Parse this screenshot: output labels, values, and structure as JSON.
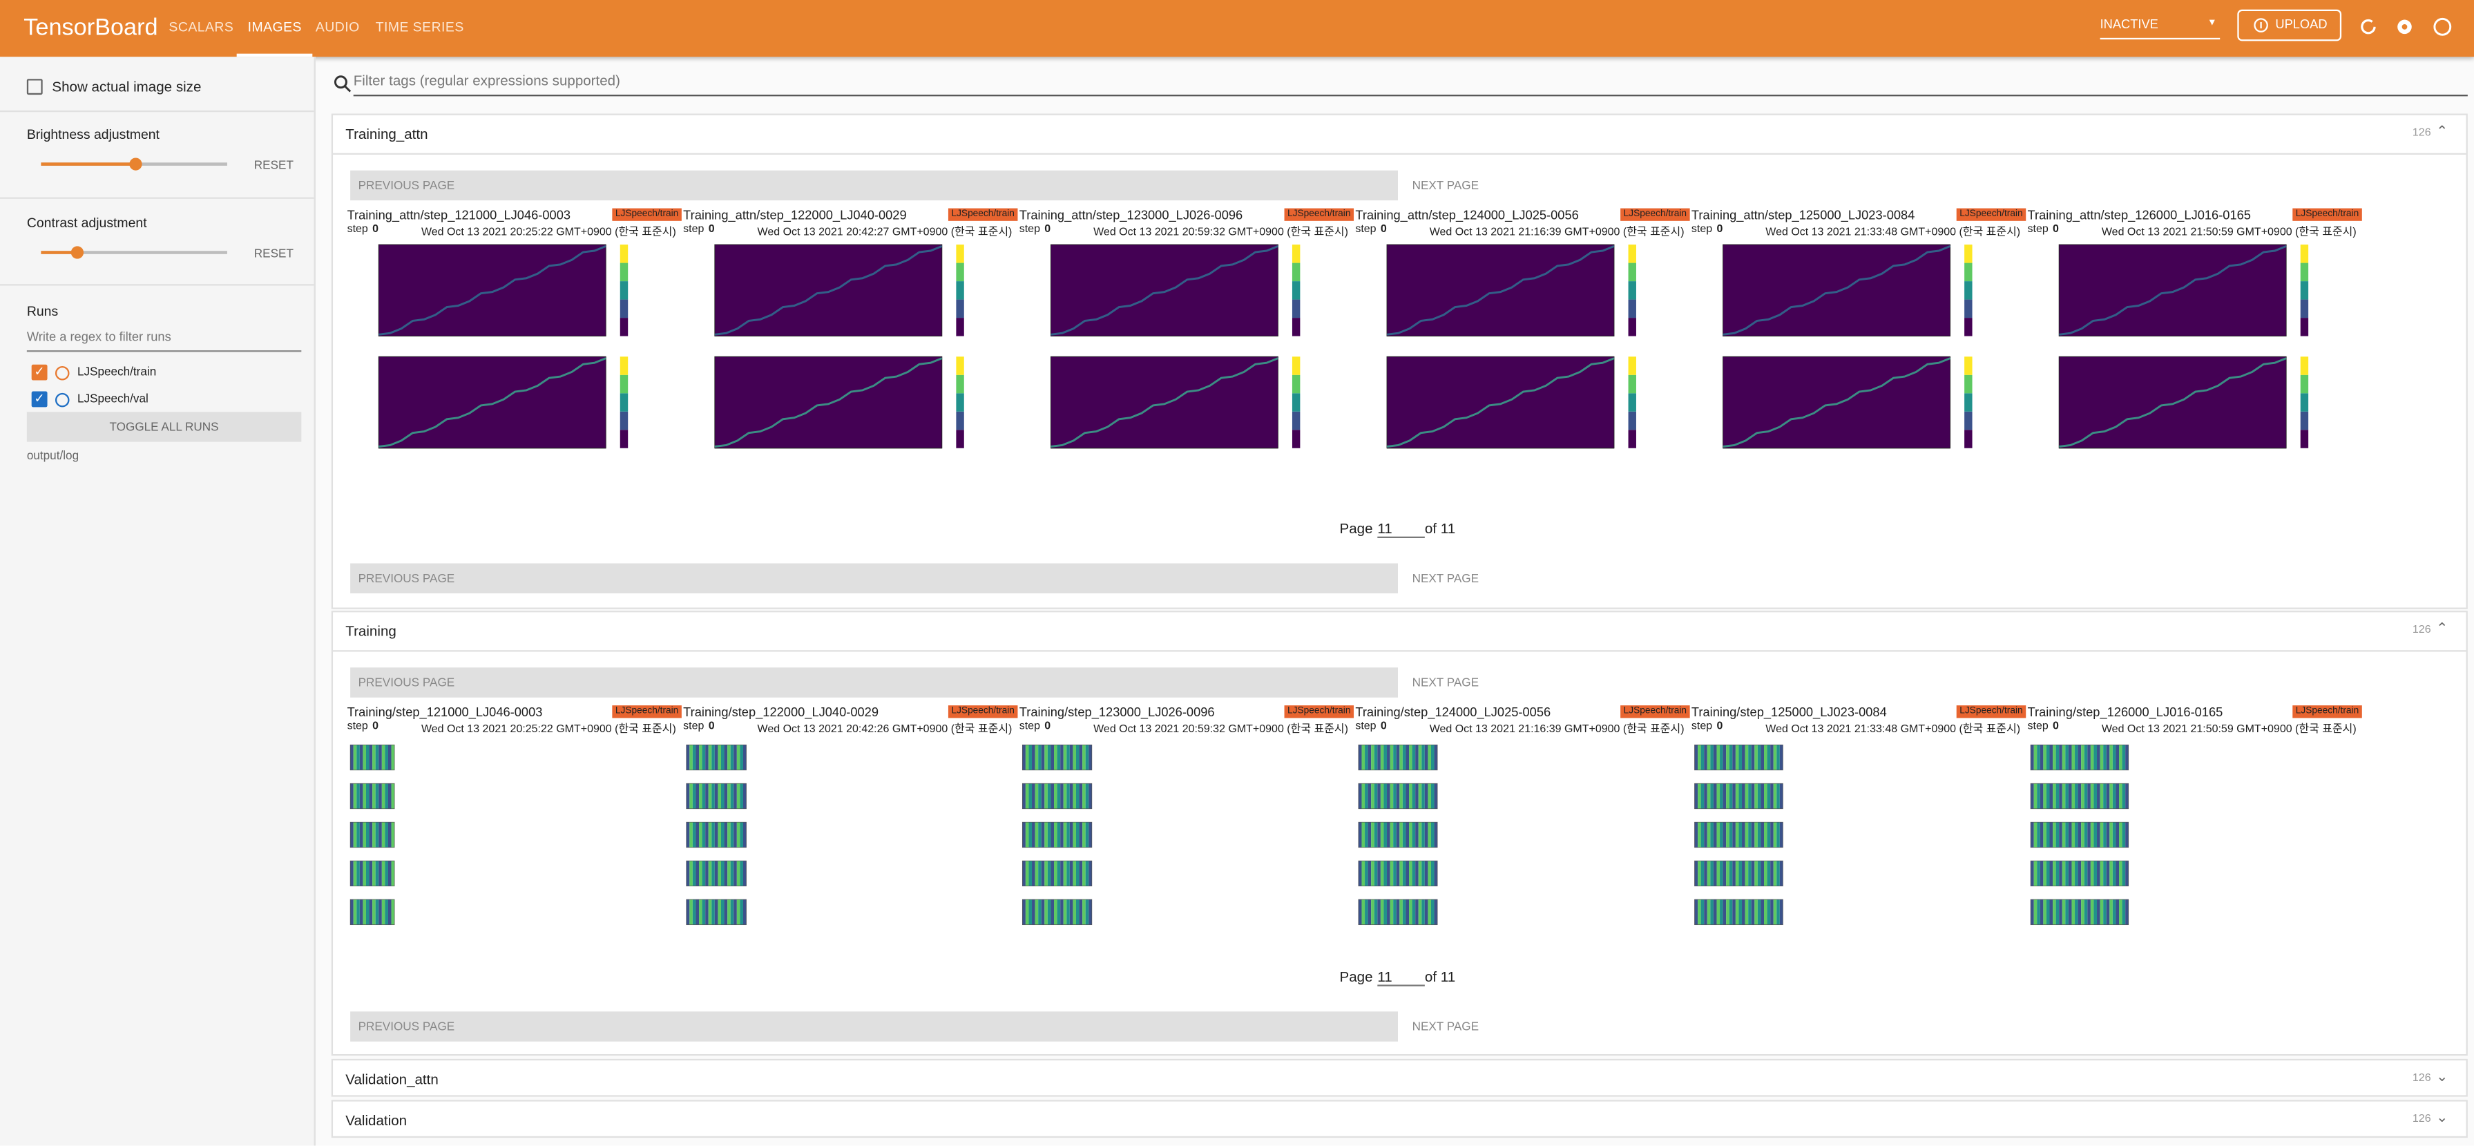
{
  "header": {
    "title": "TensorBoard",
    "tabs": [
      "SCALARS",
      "IMAGES",
      "AUDIO",
      "TIME SERIES"
    ],
    "active_tab": 1,
    "status": "INACTIVE",
    "upload": "UPLOAD"
  },
  "sidebar": {
    "show_actual": "Show actual image size",
    "brightness": {
      "label": "Brightness adjustment",
      "reset": "RESET"
    },
    "contrast": {
      "label": "Contrast adjustment",
      "reset": "RESET"
    },
    "runs_title": "Runs",
    "runs_filter": "Write a regex to filter runs",
    "runs": [
      {
        "name": "LJSpeech/train",
        "color": "#e8792f"
      },
      {
        "name": "LJSpeech/val",
        "color": "#1f6fc4"
      }
    ],
    "toggle": "TOGGLE ALL RUNS",
    "logdir": "output/log"
  },
  "filter_placeholder": "Filter tags (regular expressions supported)",
  "pager": {
    "prev": "PREVIOUS PAGE",
    "next": "NEXT PAGE",
    "page_label": "Page",
    "page": "11",
    "of": "of 11"
  },
  "sections": [
    {
      "name": "Training_attn",
      "count": "126",
      "kind": "attn",
      "cards": [
        {
          "tag": "Training_attn/step_121000_LJ046-0003",
          "run": "LJSpeech/train",
          "step_label": "step",
          "step": "0",
          "time": "Wed Oct 13 2021 20:25:22 GMT+0900 (한국 표준시)"
        },
        {
          "tag": "Training_attn/step_122000_LJ040-0029",
          "run": "LJSpeech/train",
          "step_label": "step",
          "step": "0",
          "time": "Wed Oct 13 2021 20:42:27 GMT+0900 (한국 표준시)"
        },
        {
          "tag": "Training_attn/step_123000_LJ026-0096",
          "run": "LJSpeech/train",
          "step_label": "step",
          "step": "0",
          "time": "Wed Oct 13 2021 20:59:32 GMT+0900 (한국 표준시)"
        },
        {
          "tag": "Training_attn/step_124000_LJ025-0056",
          "run": "LJSpeech/train",
          "step_label": "step",
          "step": "0",
          "time": "Wed Oct 13 2021 21:16:39 GMT+0900 (한국 표준시)"
        },
        {
          "tag": "Training_attn/step_125000_LJ023-0084",
          "run": "LJSpeech/train",
          "step_label": "step",
          "step": "0",
          "time": "Wed Oct 13 2021 21:33:48 GMT+0900 (한국 표준시)"
        },
        {
          "tag": "Training_attn/step_126000_LJ016-0165",
          "run": "LJSpeech/train",
          "step_label": "step",
          "step": "0",
          "time": "Wed Oct 13 2021 21:50:59 GMT+0900 (한국 표준시)"
        }
      ]
    },
    {
      "name": "Training",
      "count": "126",
      "kind": "spec",
      "cards": [
        {
          "tag": "Training/step_121000_LJ046-0003",
          "run": "LJSpeech/train",
          "step_label": "step",
          "step": "0",
          "time": "Wed Oct 13 2021 20:25:22 GMT+0900 (한국 표준시)"
        },
        {
          "tag": "Training/step_122000_LJ040-0029",
          "run": "LJSpeech/train",
          "step_label": "step",
          "step": "0",
          "time": "Wed Oct 13 2021 20:42:26 GMT+0900 (한국 표준시)"
        },
        {
          "tag": "Training/step_123000_LJ026-0096",
          "run": "LJSpeech/train",
          "step_label": "step",
          "step": "0",
          "time": "Wed Oct 13 2021 20:59:32 GMT+0900 (한국 표준시)"
        },
        {
          "tag": "Training/step_124000_LJ025-0056",
          "run": "LJSpeech/train",
          "step_label": "step",
          "step": "0",
          "time": "Wed Oct 13 2021 21:16:39 GMT+0900 (한국 표준시)"
        },
        {
          "tag": "Training/step_125000_LJ023-0084",
          "run": "LJSpeech/train",
          "step_label": "step",
          "step": "0",
          "time": "Wed Oct 13 2021 21:33:48 GMT+0900 (한국 표준시)"
        },
        {
          "tag": "Training/step_126000_LJ016-0165",
          "run": "LJSpeech/train",
          "step_label": "step",
          "step": "0",
          "time": "Wed Oct 13 2021 21:50:59 GMT+0900 (한국 표준시)"
        }
      ]
    },
    {
      "name": "Validation_attn",
      "count": "126",
      "kind": "collapsed"
    },
    {
      "name": "Validation",
      "count": "126",
      "kind": "collapsed"
    }
  ]
}
